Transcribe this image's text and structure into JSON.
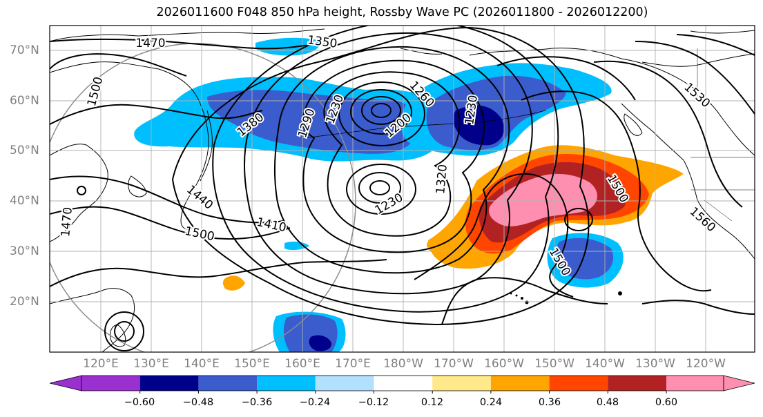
{
  "title": "2026011600 F048 850 hPa height, Rossby Wave PC (2026011800 - 2026012200)",
  "latitude_labels": [
    "70°N",
    "60°N",
    "50°N",
    "40°N",
    "30°N",
    "20°N"
  ],
  "longitude_labels": [
    "120°E",
    "130°E",
    "140°E",
    "150°E",
    "160°E",
    "170°E",
    "180°W",
    "170°W",
    "160°W",
    "150°W",
    "140°W",
    "130°W",
    "120°W"
  ],
  "contour_labels": [
    "1470",
    "1350",
    "1500",
    "1260",
    "1230",
    "1380",
    "1290",
    "1230",
    "1200",
    "1320",
    "1530",
    "1230",
    "1440",
    "1410",
    "1500",
    "1500",
    "1560",
    "1470",
    "1500"
  ],
  "colorbar": {
    "tick_labels": [
      "−0.60",
      "−0.48",
      "−0.36",
      "−0.24",
      "−0.12",
      "0.12",
      "0.24",
      "0.36",
      "0.48",
      "0.60"
    ],
    "colors": [
      "#9b30d0",
      "#00008b",
      "#3a5ccc",
      "#00bfff",
      "#b2e0ff",
      "#ffffff",
      "#ffe98a",
      "#ffa500",
      "#ff4500",
      "#b22222",
      "#ff8fb0",
      "#ff8fb0"
    ]
  }
}
